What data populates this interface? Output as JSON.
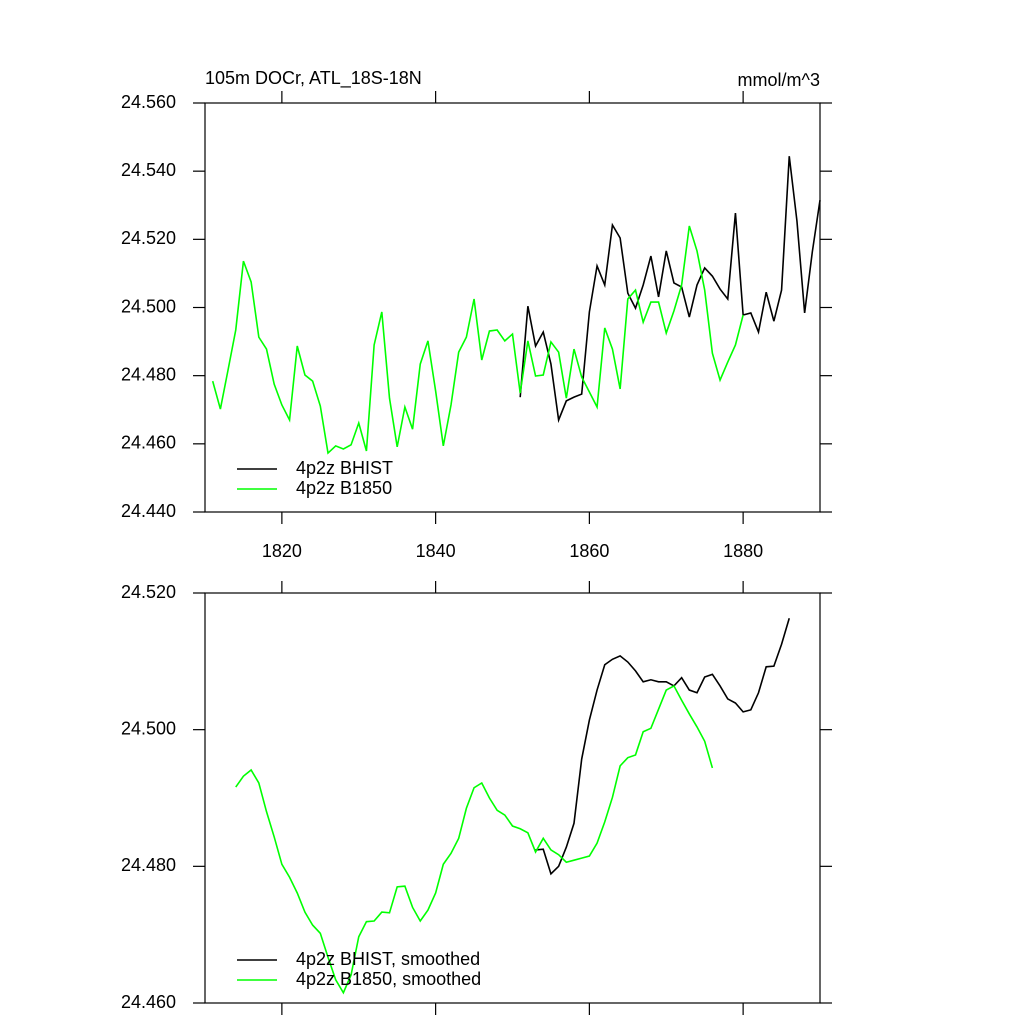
{
  "chart_data": [
    {
      "type": "line",
      "title": "105m DOCr, ATL_18S-18N",
      "units": "mmol/m^3",
      "xlim": [
        1810,
        1890
      ],
      "xticks": [
        1820,
        1840,
        1860,
        1880
      ],
      "show_xtick_labels": true,
      "ylim": [
        24.44,
        24.56
      ],
      "yticks": [
        {
          "value": 24.44,
          "label": "24.440"
        },
        {
          "value": 24.46,
          "label": "24.460"
        },
        {
          "value": 24.48,
          "label": "24.480"
        },
        {
          "value": 24.5,
          "label": "24.500"
        },
        {
          "value": 24.52,
          "label": "24.520"
        },
        {
          "value": 24.54,
          "label": "24.540"
        },
        {
          "value": 24.56,
          "label": "24.560"
        }
      ],
      "legend": "lower left",
      "series": [
        {
          "name": "4p2z BHIST",
          "color": "#000000",
          "x": [
            1851,
            1852,
            1853,
            1854,
            1855,
            1856,
            1857,
            1858,
            1859,
            1860,
            1861,
            1862,
            1863,
            1864,
            1865,
            1866,
            1867,
            1868,
            1869,
            1870,
            1871,
            1872,
            1873,
            1874,
            1875,
            1876,
            1877,
            1878,
            1879,
            1880,
            1881,
            1882,
            1883,
            1884,
            1885,
            1886,
            1887,
            1888,
            1889,
            1890
          ],
          "values": [
            24.4737,
            24.5004,
            24.4887,
            24.4928,
            24.4834,
            24.467,
            24.4726,
            24.4737,
            24.4746,
            24.4987,
            24.5122,
            24.5066,
            24.5242,
            24.5204,
            24.5042,
            24.4998,
            24.5066,
            24.5151,
            24.5031,
            24.5166,
            24.5072,
            24.506,
            24.4972,
            24.5066,
            24.5116,
            24.5092,
            24.5054,
            24.5025,
            24.5277,
            24.4978,
            24.4984,
            24.4928,
            24.5045,
            24.496,
            24.5051,
            24.5444,
            24.5254,
            24.4984,
            24.5163,
            24.5315
          ]
        },
        {
          "name": "4p2z B1850",
          "color": "#00ff00",
          "x": [
            1811,
            1812,
            1813,
            1814,
            1815,
            1816,
            1817,
            1818,
            1819,
            1820,
            1821,
            1822,
            1823,
            1824,
            1825,
            1826,
            1827,
            1828,
            1829,
            1830,
            1831,
            1832,
            1833,
            1834,
            1835,
            1836,
            1837,
            1838,
            1839,
            1840,
            1841,
            1842,
            1843,
            1844,
            1845,
            1846,
            1847,
            1848,
            1849,
            1850,
            1851,
            1852,
            1853,
            1854,
            1855,
            1856,
            1857,
            1858,
            1859,
            1860,
            1861,
            1862,
            1863,
            1864,
            1865,
            1866,
            1867,
            1868,
            1869,
            1870,
            1871,
            1872,
            1873,
            1874,
            1875,
            1876,
            1877,
            1878,
            1879,
            1880
          ],
          "values": [
            24.4784,
            24.4702,
            24.4817,
            24.4934,
            24.5136,
            24.5075,
            24.4913,
            24.4878,
            24.4775,
            24.4714,
            24.467,
            24.4887,
            24.4802,
            24.4784,
            24.4711,
            24.4573,
            24.4594,
            24.4585,
            24.4597,
            24.4661,
            24.4579,
            24.489,
            24.4987,
            24.4734,
            24.4591,
            24.4708,
            24.4643,
            24.4834,
            24.4902,
            24.4755,
            24.4594,
            24.4714,
            24.4869,
            24.4913,
            24.5025,
            24.4846,
            24.4931,
            24.4934,
            24.4902,
            24.4922,
            24.4749,
            24.4902,
            24.4799,
            24.4802,
            24.4899,
            24.4869,
            24.4734,
            24.4878,
            24.4796,
            24.4752,
            24.4708,
            24.494,
            24.4878,
            24.4761,
            24.5025,
            24.5051,
            24.4957,
            24.5016,
            24.5016,
            24.4925,
            24.499,
            24.5066,
            24.5239,
            24.5166,
            24.5051,
            24.4866,
            24.4787,
            24.484,
            24.489,
            24.4978
          ]
        }
      ]
    },
    {
      "type": "line",
      "xlim": [
        1810,
        1890
      ],
      "xticks": [
        1820,
        1840,
        1860,
        1880
      ],
      "show_xtick_labels": false,
      "ylim": [
        24.46,
        24.52
      ],
      "yticks": [
        {
          "value": 24.46,
          "label": "24.460"
        },
        {
          "value": 24.48,
          "label": "24.480"
        },
        {
          "value": 24.5,
          "label": "24.500"
        },
        {
          "value": 24.52,
          "label": "24.520"
        }
      ],
      "legend": "lower left",
      "series": [
        {
          "name": "4p2z BHIST, smoothed",
          "color": "#000000",
          "x": [
            1853,
            1854,
            1855,
            1856,
            1857,
            1858,
            1859,
            1860,
            1861,
            1862,
            1863,
            1864,
            1865,
            1866,
            1867,
            1868,
            1869,
            1870,
            1871,
            1872,
            1873,
            1874,
            1875,
            1876,
            1877,
            1878,
            1879,
            1880,
            1881,
            1882,
            1883,
            1884,
            1885,
            1886
          ],
          "values": [
            24.4824,
            24.4825,
            24.4789,
            24.48,
            24.4828,
            24.4863,
            24.4957,
            24.5014,
            24.5058,
            24.5095,
            24.5103,
            24.5108,
            24.5099,
            24.5086,
            24.507,
            24.5073,
            24.507,
            24.507,
            24.5064,
            24.5076,
            24.5058,
            24.5054,
            24.5077,
            24.5081,
            24.5064,
            24.5045,
            24.5039,
            24.5026,
            24.5029,
            24.5054,
            24.5092,
            24.5093,
            24.5125,
            24.5163
          ]
        },
        {
          "name": "4p2z B1850, smoothed",
          "color": "#00ff00",
          "x": [
            1814,
            1815,
            1816,
            1817,
            1818,
            1819,
            1820,
            1821,
            1822,
            1823,
            1824,
            1825,
            1826,
            1827,
            1828,
            1829,
            1830,
            1831,
            1832,
            1833,
            1834,
            1835,
            1836,
            1837,
            1838,
            1839,
            1840,
            1841,
            1842,
            1843,
            1844,
            1845,
            1846,
            1847,
            1848,
            1849,
            1850,
            1851,
            1852,
            1853,
            1854,
            1855,
            1856,
            1857,
            1858,
            1859,
            1860,
            1861,
            1862,
            1863,
            1864,
            1865,
            1866,
            1867,
            1868,
            1869,
            1870,
            1871,
            1872,
            1873,
            1874,
            1875,
            1876
          ],
          "values": [
            24.4916,
            24.4932,
            24.4941,
            24.4922,
            24.488,
            24.4843,
            24.4803,
            24.4784,
            24.4761,
            24.4733,
            24.4714,
            24.4702,
            24.4667,
            24.4634,
            24.4615,
            24.4641,
            24.4697,
            24.4719,
            24.472,
            24.4733,
            24.4732,
            24.477,
            24.4771,
            24.474,
            24.472,
            24.4736,
            24.4761,
            24.4803,
            24.4819,
            24.4841,
            24.4885,
            24.4915,
            24.4922,
            24.49,
            24.4882,
            24.4875,
            24.4859,
            24.4855,
            24.4849,
            24.4821,
            24.4841,
            24.4824,
            24.4817,
            24.4806,
            24.4809,
            24.4812,
            24.4815,
            24.4834,
            24.4865,
            24.4901,
            24.4947,
            24.4959,
            24.4963,
            24.4997,
            24.5002,
            24.503,
            24.5058,
            24.5064,
            24.5043,
            24.5023,
            24.5004,
            24.4983,
            24.4944
          ]
        }
      ]
    }
  ]
}
